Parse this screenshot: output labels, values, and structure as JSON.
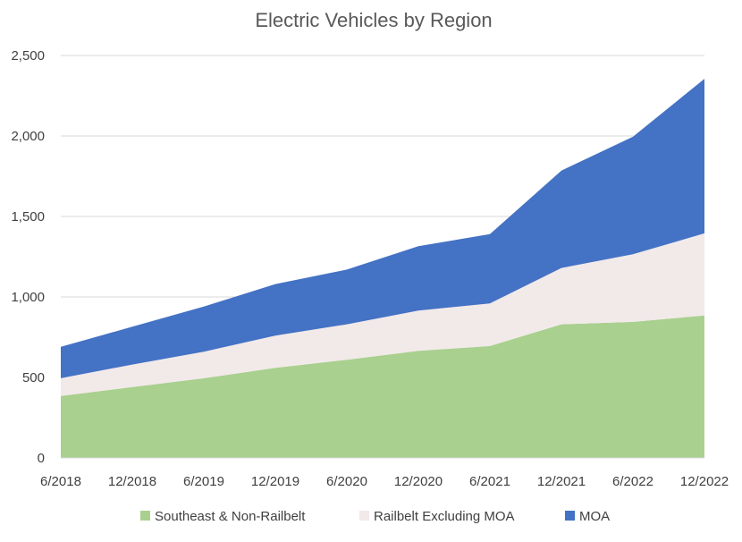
{
  "chart_data": {
    "type": "area",
    "stacked": true,
    "title": "Electric Vehicles by Region",
    "xlabel": "",
    "ylabel": "",
    "categories": [
      "6/2018",
      "12/2018",
      "6/2019",
      "12/2019",
      "6/2020",
      "12/2020",
      "6/2021",
      "12/2021",
      "6/2022",
      "12/2022"
    ],
    "ylim": [
      0,
      2500
    ],
    "yticks": [
      0,
      500,
      1000,
      1500,
      2000,
      2500
    ],
    "ytick_labels": [
      "0",
      "500",
      "1,000",
      "1,500",
      "2,000",
      "2,500"
    ],
    "grid": true,
    "legend_position": "bottom",
    "series": [
      {
        "name": "Southeast & Non-Railbelt",
        "color": "#a9d08e",
        "values": [
          385,
          440,
          495,
          560,
          610,
          665,
          695,
          830,
          845,
          885
        ]
      },
      {
        "name": "Railbelt Excluding MOA",
        "color": "#f2e9e9",
        "values": [
          110,
          140,
          165,
          200,
          220,
          250,
          265,
          350,
          420,
          510
        ]
      },
      {
        "name": "MOA",
        "color": "#4472c4",
        "values": [
          195,
          235,
          280,
          320,
          340,
          400,
          430,
          605,
          730,
          960
        ]
      }
    ]
  }
}
